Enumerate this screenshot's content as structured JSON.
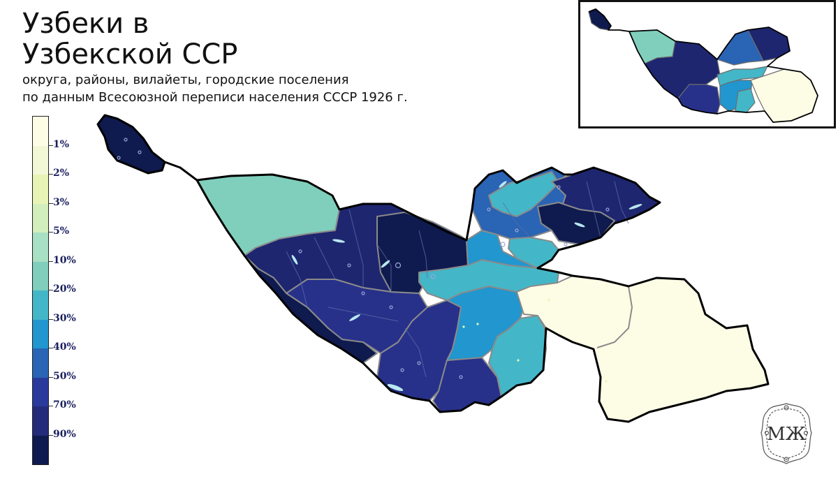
{
  "title": {
    "line1": "Узбеки в",
    "line2": "Узбекской ССР"
  },
  "subtitle": {
    "line1": "округа, районы, вилайеты, городские поселения",
    "line2": "по данным Всесоюзной переписи населения СССР 1926 г."
  },
  "legend": {
    "labels": [
      "1%",
      "2%",
      "3%",
      "5%",
      "10%",
      "20%",
      "30%",
      "40%",
      "50%",
      "70%",
      "90%"
    ],
    "colors": [
      "#fdfde6",
      "#f2f8d6",
      "#e8f4b6",
      "#d3eebd",
      "#a8e0c4",
      "#7fcfbc",
      "#43b7c8",
      "#2196cf",
      "#2a64b4",
      "#2a3a9c",
      "#232b7a",
      "#0f1a4e"
    ]
  },
  "map": {
    "colors": {
      "very_dark": "#0f1a4e",
      "dark": "#1e2670",
      "navy": "#27318a",
      "blue": "#2a64b4",
      "mid_blue": "#2196cf",
      "teal": "#43b7c8",
      "mint": "#7fcfbc",
      "cream": "#fdfde6",
      "border": "#000000",
      "region_border": "#8a8a8a"
    }
  },
  "logo": {
    "text": "МЖ"
  }
}
